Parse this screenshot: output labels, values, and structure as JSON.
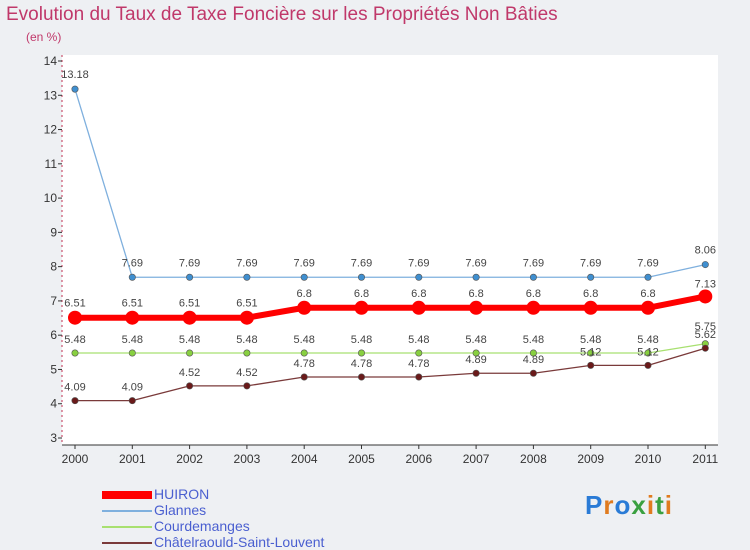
{
  "title": "Evolution du Taux de Taxe Foncière sur les Propriétés Non Bâties",
  "subtitle": "(en %)",
  "logo": {
    "text": "Proxiti",
    "colors": [
      "#2a7bd6",
      "#e07b1f",
      "#2a7bd6",
      "#3aa040",
      "#e07b1f",
      "#3aa040",
      "#e07b1f"
    ]
  },
  "chart_data": {
    "type": "line",
    "title": "Evolution du Taux de Taxe Foncière sur les Propriétés Non Bâties",
    "ylabel": "(en %)",
    "x": [
      "2000",
      "2001",
      "2002",
      "2003",
      "2004",
      "2005",
      "2006",
      "2007",
      "2008",
      "2009",
      "2010",
      "2011"
    ],
    "ylim": [
      3,
      14
    ],
    "yticks": [
      3,
      4,
      5,
      6,
      7,
      8,
      9,
      10,
      11,
      12,
      13,
      14
    ],
    "series": [
      {
        "name": "HUIRON",
        "color": "#ff0000",
        "marker": "#ff0000",
        "width": 6,
        "dot": 7,
        "values": [
          6.51,
          6.51,
          6.51,
          6.51,
          6.8,
          6.8,
          6.8,
          6.8,
          6.8,
          6.8,
          6.8,
          7.13
        ],
        "labels": [
          "6.51",
          "6.51",
          "6.51",
          "6.51",
          "6.8",
          "6.8",
          "6.8",
          "6.8",
          "6.8",
          "6.8",
          "6.8",
          "7.13"
        ]
      },
      {
        "name": "Glannes",
        "color": "#7fb0de",
        "marker": "#3f8fd0",
        "width": 1.3,
        "dot": 3.2,
        "values": [
          13.18,
          7.69,
          7.69,
          7.69,
          7.69,
          7.69,
          7.69,
          7.69,
          7.69,
          7.69,
          7.69,
          8.06
        ],
        "labels": [
          "13.18",
          "7.69",
          "7.69",
          "7.69",
          "7.69",
          "7.69",
          "7.69",
          "7.69",
          "7.69",
          "7.69",
          "7.69",
          "8.06"
        ]
      },
      {
        "name": "Courdemanges",
        "color": "#a8e070",
        "marker": "#88d040",
        "width": 1.3,
        "dot": 3.2,
        "values": [
          5.48,
          5.48,
          5.48,
          5.48,
          5.48,
          5.48,
          5.48,
          5.48,
          5.48,
          5.48,
          5.48,
          5.75
        ],
        "labels": [
          "5.48",
          "5.48",
          "5.48",
          "5.48",
          "5.48",
          "5.48",
          "5.48",
          "5.48",
          "5.48",
          "5.48",
          "5.48",
          "5.75"
        ]
      },
      {
        "name": "Châtelraould-Saint-Louvent",
        "color": "#7a3a3a",
        "marker": "#6a1a1a",
        "width": 1.3,
        "dot": 3.2,
        "values": [
          4.09,
          4.09,
          4.52,
          4.52,
          4.78,
          4.78,
          4.78,
          4.89,
          4.89,
          5.12,
          5.12,
          5.62
        ],
        "labels": [
          "4.09",
          "4.09",
          "4.52",
          "4.52",
          "4.78",
          "4.78",
          "4.78",
          "4.89",
          "4.89",
          "5.12",
          "5.12",
          "5.62"
        ]
      }
    ]
  }
}
